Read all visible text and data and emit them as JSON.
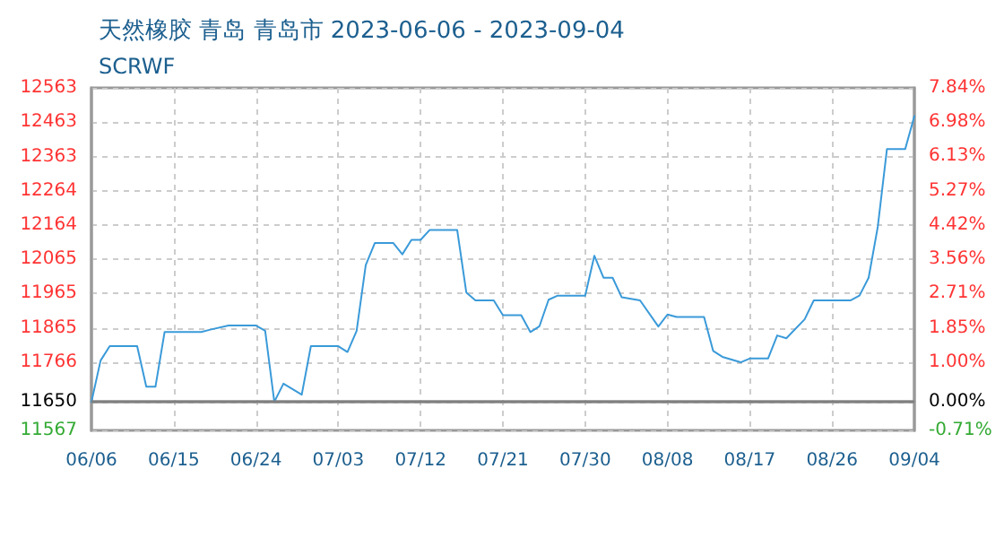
{
  "chart_data": {
    "type": "line",
    "title": "天然橡胶 青岛 青岛市 2023-06-06 - 2023-09-04",
    "subtitle": "SCRWF",
    "series": [
      {
        "color": "#3a9ad9",
        "x": [
          "2023-06-06",
          "2023-06-07",
          "2023-06-08",
          "2023-06-11",
          "2023-06-12",
          "2023-06-13",
          "2023-06-14",
          "2023-06-18",
          "2023-06-19",
          "2023-06-21",
          "2023-06-24",
          "2023-06-25",
          "2023-06-26",
          "2023-06-27",
          "2023-06-29",
          "2023-06-30",
          "2023-07-03",
          "2023-07-04",
          "2023-07-05",
          "2023-07-06",
          "2023-07-07",
          "2023-07-09",
          "2023-07-10",
          "2023-07-11",
          "2023-07-12",
          "2023-07-13",
          "2023-07-16",
          "2023-07-17",
          "2023-07-18",
          "2023-07-20",
          "2023-07-21",
          "2023-07-23",
          "2023-07-24",
          "2023-07-25",
          "2023-07-26",
          "2023-07-27",
          "2023-07-30",
          "2023-07-31",
          "2023-08-01",
          "2023-08-02",
          "2023-08-03",
          "2023-08-05",
          "2023-08-07",
          "2023-08-08",
          "2023-08-09",
          "2023-08-12",
          "2023-08-13",
          "2023-08-14",
          "2023-08-16",
          "2023-08-17",
          "2023-08-19",
          "2023-08-20",
          "2023-08-21",
          "2023-08-23",
          "2023-08-24",
          "2023-08-28",
          "2023-08-29",
          "2023-08-30",
          "2023-08-31",
          "2023-09-01",
          "2023-09-03",
          "2023-09-04"
        ],
        "values": [
          11650,
          11770,
          11812,
          11812,
          11694,
          11694,
          11853,
          11853,
          11860,
          11872,
          11872,
          11857,
          11650,
          11703,
          11671,
          11812,
          11812,
          11795,
          11856,
          12048,
          12112,
          12112,
          12079,
          12121,
          12121,
          12150,
          12150,
          11968,
          11945,
          11945,
          11902,
          11902,
          11853,
          11870,
          11947,
          11959,
          11959,
          12075,
          12011,
          12011,
          11954,
          11945,
          11869,
          11904,
          11897,
          11897,
          11798,
          11781,
          11765,
          11776,
          11776,
          11843,
          11835,
          11890,
          11945,
          11945,
          11959,
          12011,
          12159,
          12385,
          12385,
          12481
        ]
      }
    ],
    "xlim": [
      "2023-06-06",
      "2023-09-04"
    ],
    "xticks": [
      {
        "value": "2023-06-06",
        "label": "06/06"
      },
      {
        "value": "2023-06-15",
        "label": "06/15"
      },
      {
        "value": "2023-06-24",
        "label": "06/24"
      },
      {
        "value": "2023-07-03",
        "label": "07/03"
      },
      {
        "value": "2023-07-12",
        "label": "07/12"
      },
      {
        "value": "2023-07-21",
        "label": "07/21"
      },
      {
        "value": "2023-07-30",
        "label": "07/30"
      },
      {
        "value": "2023-08-08",
        "label": "08/08"
      },
      {
        "value": "2023-08-17",
        "label": "08/17"
      },
      {
        "value": "2023-08-26",
        "label": "08/26"
      },
      {
        "value": "2023-09-04",
        "label": "09/04"
      }
    ],
    "ylim": [
      11567,
      12563
    ],
    "yticks": [
      11567,
      11650,
      11766,
      11865,
      11965,
      12065,
      12164,
      12264,
      12363,
      12463,
      12563
    ],
    "y2lim": [
      -0.71,
      7.84
    ],
    "y2ticks": [
      {
        "value": -0.71,
        "label": "-0.71%"
      },
      {
        "value": 0,
        "label": "0.00%"
      },
      {
        "value": 1,
        "label": "1.00%"
      },
      {
        "value": 1.85,
        "label": "1.85%"
      },
      {
        "value": 2.71,
        "label": "2.71%"
      },
      {
        "value": 3.56,
        "label": "3.56%"
      },
      {
        "value": 4.42,
        "label": "4.42%"
      },
      {
        "value": 5.27,
        "label": "5.27%"
      },
      {
        "value": 6.13,
        "label": "6.13%"
      },
      {
        "value": 6.98,
        "label": "6.98%"
      },
      {
        "value": 7.84,
        "label": "7.84%"
      }
    ],
    "ref_lines": [
      {
        "axis": "y",
        "value": 11650,
        "color": "#808080"
      }
    ],
    "grid": true,
    "marker": "none",
    "line_style": "solid"
  }
}
